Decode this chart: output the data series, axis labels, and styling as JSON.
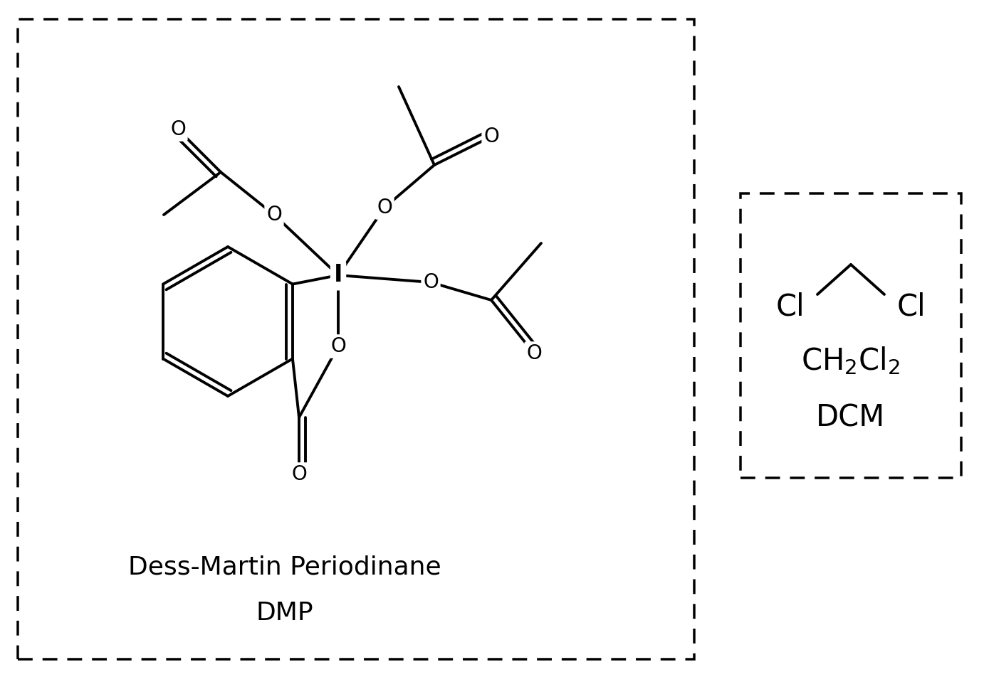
{
  "background_color": "#ffffff",
  "line_color": "#000000",
  "line_width": 2.8,
  "dmp_label": "Dess-Martin Periodinane",
  "dmp_label2": "DMP",
  "dcm_label2": "DCM",
  "font_size_label": 26,
  "font_size_atom": 20,
  "font_size_dcm": 30
}
